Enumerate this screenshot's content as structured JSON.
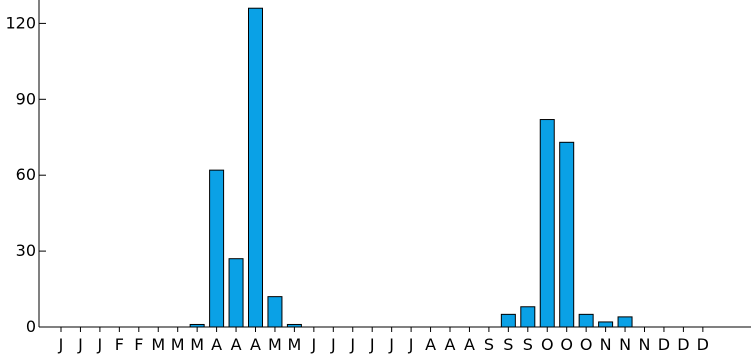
{
  "chart_data": {
    "type": "bar",
    "title": "",
    "xlabel": "",
    "ylabel": "",
    "ylim": [
      0,
      130
    ],
    "yticks": [
      0,
      30,
      60,
      90,
      120
    ],
    "grid": false,
    "legend": "none",
    "bar_color": "#0aa1e6",
    "categories": [
      "J",
      "J",
      "J",
      "F",
      "F",
      "M",
      "M",
      "M",
      "A",
      "A",
      "A",
      "M",
      "M",
      "J",
      "J",
      "J",
      "J",
      "J",
      "J",
      "A",
      "A",
      "A",
      "S",
      "S",
      "S",
      "O",
      "O",
      "O",
      "N",
      "N",
      "N",
      "D",
      "D",
      "D"
    ],
    "values": [
      0,
      0,
      0,
      0,
      0,
      0,
      0,
      1,
      62,
      27,
      126,
      12,
      1,
      0,
      0,
      0,
      0,
      0,
      0,
      0,
      0,
      0,
      0,
      5,
      8,
      82,
      73,
      5,
      2,
      4,
      0,
      0,
      0,
      0
    ]
  }
}
